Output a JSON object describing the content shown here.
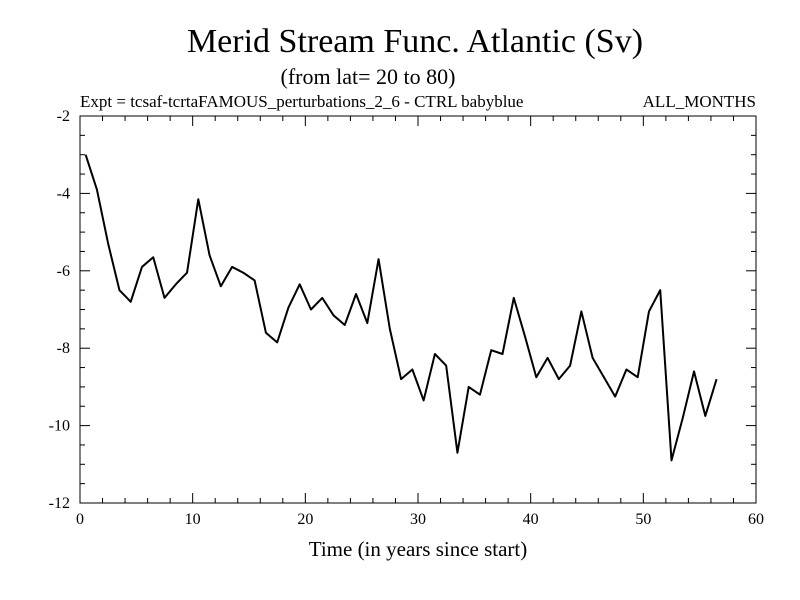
{
  "chart_data": {
    "type": "line",
    "title": "Merid Stream Func. Atlantic (Sv)",
    "subtitle": "(from lat= 20 to 80)",
    "expt_label": "Expt = tcsaf-tcrtaFAMOUS_perturbations_2_6 - CTRL babyblue",
    "period_label": "ALL_MONTHS",
    "xlabel": "Time (in years since start)",
    "ylabel": "",
    "xlim": [
      0,
      60
    ],
    "ylim": [
      -12,
      -2
    ],
    "xticks": [
      0,
      10,
      20,
      30,
      40,
      50,
      60
    ],
    "yticks": [
      -2,
      -4,
      -6,
      -8,
      -10,
      -12
    ],
    "grid": false,
    "series": [
      {
        "name": "Merid Stream Func. Atlantic",
        "color": "#000000",
        "x": [
          0.5,
          1.5,
          2.5,
          3.5,
          4.5,
          5.5,
          6.5,
          7.5,
          8.5,
          9.5,
          10.5,
          11.5,
          12.5,
          13.5,
          14.5,
          15.5,
          16.5,
          17.5,
          18.5,
          19.5,
          20.5,
          21.5,
          22.5,
          23.5,
          24.5,
          25.5,
          26.5,
          27.5,
          28.5,
          29.5,
          30.5,
          31.5,
          32.5,
          33.5,
          34.5,
          35.5,
          36.5,
          37.5,
          38.5,
          39.5,
          40.5,
          41.5,
          42.5,
          43.5,
          44.5,
          45.5,
          46.5,
          47.5,
          48.5,
          49.5,
          50.5,
          51.5,
          52.5,
          53.5,
          54.5,
          55.5,
          56.5
        ],
        "y": [
          -3.0,
          -3.9,
          -5.3,
          -6.5,
          -6.8,
          -5.9,
          -5.65,
          -6.7,
          -6.35,
          -6.05,
          -4.15,
          -5.6,
          -6.4,
          -5.9,
          -6.05,
          -6.25,
          -7.6,
          -7.85,
          -6.95,
          -6.35,
          -7.0,
          -6.7,
          -7.15,
          -7.4,
          -6.6,
          -7.35,
          -5.7,
          -7.5,
          -8.8,
          -8.55,
          -9.35,
          -8.15,
          -8.45,
          -10.7,
          -9.0,
          -9.2,
          -8.05,
          -8.15,
          -6.7,
          -7.7,
          -8.75,
          -8.25,
          -8.8,
          -8.45,
          -7.05,
          -8.25,
          -8.75,
          -9.25,
          -8.55,
          -8.75,
          -7.05,
          -6.5,
          -10.9,
          -9.8,
          -8.6,
          -9.75,
          -8.8
        ]
      }
    ]
  }
}
